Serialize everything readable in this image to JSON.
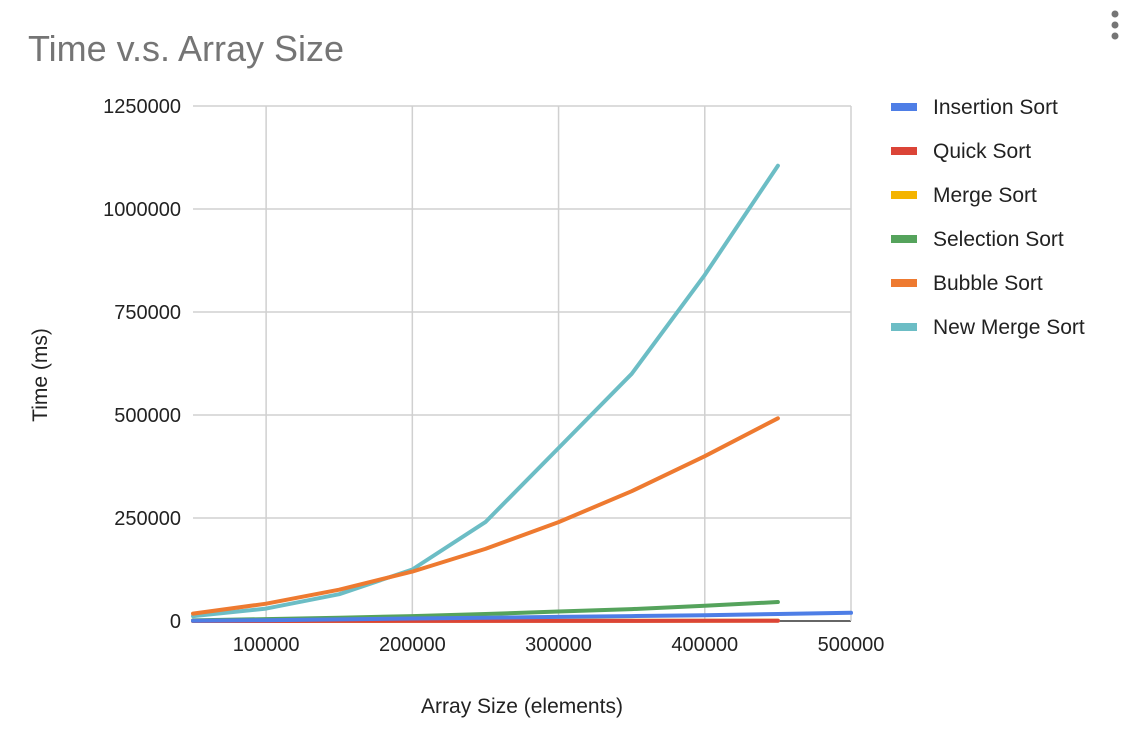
{
  "chart_data": {
    "type": "line",
    "title": "Time v.s. Array Size",
    "xlabel": "Array Size (elements)",
    "ylabel": "Time (ms)",
    "xlim": [
      50000,
      500000
    ],
    "ylim": [
      0,
      1250000
    ],
    "x_ticks": [
      "100000",
      "200000",
      "300000",
      "400000",
      "500000"
    ],
    "x_tick_values": [
      100000,
      200000,
      300000,
      400000,
      500000
    ],
    "y_ticks": [
      "0",
      "250000",
      "500000",
      "750000",
      "1000000",
      "1250000"
    ],
    "y_tick_values": [
      0,
      250000,
      500000,
      750000,
      1000000,
      1250000
    ],
    "grid": true,
    "legend_position": "right",
    "x": [
      50000,
      100000,
      150000,
      200000,
      250000,
      300000,
      350000,
      400000,
      450000,
      500000
    ],
    "series": [
      {
        "name": "Insertion Sort",
        "color": "#4e7ee6",
        "values": [
          600,
          2000,
          4000,
          6000,
          8000,
          10000,
          12000,
          14000,
          17000,
          20000
        ]
      },
      {
        "name": "Quick Sort",
        "color": "#db4437",
        "values": [
          50,
          100,
          150,
          200,
          250,
          300,
          350,
          400,
          450,
          null
        ]
      },
      {
        "name": "Merge Sort",
        "color": "#f4b400",
        "values": [
          100,
          200,
          300,
          400,
          500,
          600,
          700,
          800,
          900,
          null
        ]
      },
      {
        "name": "Selection Sort",
        "color": "#55a35c",
        "values": [
          1500,
          4500,
          8000,
          12000,
          17000,
          23000,
          29000,
          37000,
          46000,
          null
        ]
      },
      {
        "name": "Bubble Sort",
        "color": "#ee7a30",
        "values": [
          18000,
          42000,
          76000,
          120000,
          175000,
          240000,
          315000,
          400000,
          492000,
          null
        ]
      },
      {
        "name": "New Merge Sort",
        "color": "#6cbdc5",
        "values": [
          12000,
          30000,
          65000,
          125000,
          240000,
          420000,
          600000,
          840000,
          1105000,
          null
        ]
      }
    ]
  }
}
